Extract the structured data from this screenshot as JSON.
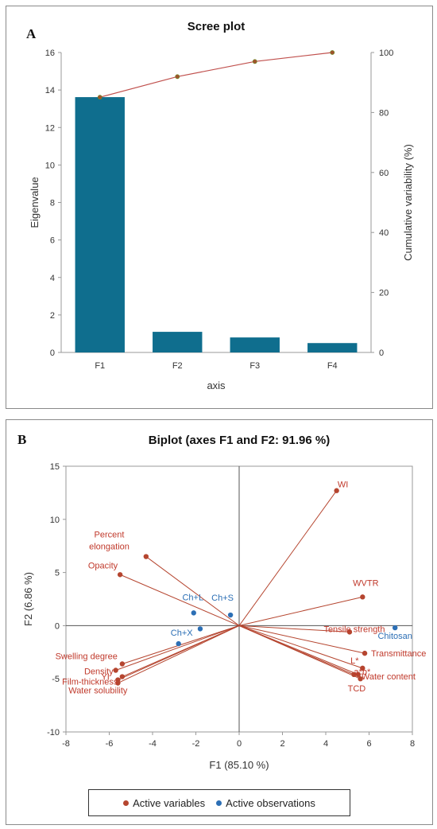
{
  "panelA": {
    "letter": "A",
    "chart_data": {
      "type": "bar",
      "title": "Scree plot",
      "categories": [
        "F1",
        "F2",
        "F3",
        "F4"
      ],
      "series": [
        {
          "axis": "left",
          "kind": "bar",
          "values": [
            13.62,
            1.1,
            0.8,
            0.5
          ]
        },
        {
          "axis": "right",
          "kind": "line",
          "values": [
            85.1,
            91.96,
            97.0,
            100.0
          ]
        }
      ],
      "xlabel": "axis",
      "ylabel": "Eigenvalue",
      "y2label": "Cumulative  variability (%)",
      "ylim": [
        0,
        16
      ],
      "y2lim": [
        0,
        100
      ],
      "yticks": [
        "0",
        "2",
        "4",
        "6",
        "8",
        "10",
        "12",
        "14",
        "16"
      ],
      "y2ticks": [
        "0",
        "20",
        "40",
        "60",
        "80",
        "100"
      ],
      "bar_color": "#0f6e8e",
      "line_color": "#c0504d"
    }
  },
  "panelB": {
    "letter": "B",
    "chart_data": {
      "type": "scatter",
      "title": "Biplot (axes F1 and F2: 91.96 %)",
      "xlabel": "F1 (85.10 %)",
      "ylabel": "F2 (6.86 %)",
      "xlim": [
        -8,
        8
      ],
      "ylim": [
        -10,
        15
      ],
      "xticks": [
        "-8",
        "-6",
        "-4",
        "-2",
        "0",
        "2",
        "4",
        "6",
        "8"
      ],
      "yticks": [
        "-10",
        "-5",
        "0",
        "5",
        "10",
        "15"
      ],
      "variables": [
        {
          "label": "WI",
          "x": 4.5,
          "y": 12.7
        },
        {
          "label": "WVTR",
          "x": 5.7,
          "y": 2.7
        },
        {
          "label": "Tensile strength",
          "x": 5.1,
          "y": -0.6
        },
        {
          "label": "Transmittance",
          "x": 5.8,
          "y": -2.6
        },
        {
          "label": "L*",
          "x": 5.7,
          "y": -4.0
        },
        {
          "label": "Water content",
          "x": 5.5,
          "y": -4.6
        },
        {
          "label": "a*b*",
          "x": 5.3,
          "y": -4.6
        },
        {
          "label": "TCD",
          "x": 5.6,
          "y": -5.0
        },
        {
          "label": "Percent elongation",
          "x": -4.3,
          "y": 6.5
        },
        {
          "label": "Opacity",
          "x": -5.5,
          "y": 4.8
        },
        {
          "label": "Swelling degree",
          "x": -5.4,
          "y": -3.6
        },
        {
          "label": "Density",
          "x": -5.7,
          "y": -4.2
        },
        {
          "label": "YI",
          "x": -5.4,
          "y": -4.8
        },
        {
          "label": "Film-thickness",
          "x": -5.6,
          "y": -5.1
        },
        {
          "label": "Water solubility",
          "x": -5.6,
          "y": -5.4
        }
      ],
      "observations": [
        {
          "label": "Chitosan",
          "x": 7.2,
          "y": -0.2
        },
        {
          "label": "Ch+L",
          "x": -2.1,
          "y": 1.2
        },
        {
          "label": "Ch+S",
          "x": -0.4,
          "y": 1.0
        },
        {
          "label": "Ch+X",
          "x": -2.8,
          "y": -1.7
        },
        {
          "label": "",
          "x": -1.8,
          "y": -0.3
        }
      ],
      "legend": [
        "Active variables",
        "Active observations"
      ],
      "legend_position": "bottom",
      "variable_color": "#c0392b",
      "observation_color": "#2c6fb5"
    }
  }
}
